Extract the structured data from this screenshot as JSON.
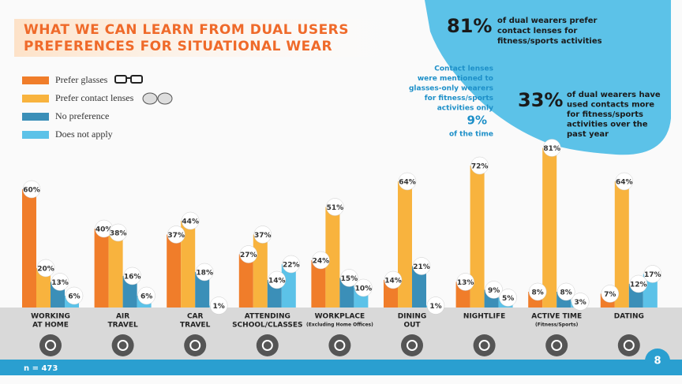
{
  "chart_data": {
    "type": "bar",
    "title": [
      "WHAT WE CAN LEARN FROM DUAL USERS",
      "PREFERENCES FOR SITUATIONAL WEAR"
    ],
    "categories": [
      [
        "WORKING",
        "AT HOME"
      ],
      [
        "AIR",
        "TRAVEL"
      ],
      [
        "CAR",
        "TRAVEL"
      ],
      [
        "ATTENDING",
        "SCHOOL/CLASSES"
      ],
      [
        "WORKPLACE"
      ],
      [
        "DINING",
        "OUT"
      ],
      [
        "NIGHTLIFE"
      ],
      [
        "ACTIVE TIME"
      ],
      [
        "DATING"
      ]
    ],
    "category_notes": [
      null,
      null,
      null,
      null,
      "(Excluding Home Offices)",
      null,
      null,
      "(Fitness/Sports)",
      null
    ],
    "series": [
      {
        "name": "Prefer glasses",
        "color": "#f07d2a",
        "values": [
          60,
          40,
          37,
          27,
          24,
          14,
          13,
          8,
          7
        ],
        "value_labels": [
          "60%",
          "40%",
          "37%",
          "27%",
          "24%",
          "14%",
          "13%",
          "8%",
          "7%"
        ]
      },
      {
        "name": "Prefer contact lenses",
        "color": "#f8b33e",
        "values": [
          20,
          38,
          44,
          37,
          51,
          64,
          72,
          81,
          64
        ],
        "value_labels": [
          "20%",
          "38%",
          "44%",
          "37%",
          "51%",
          "64%",
          "72%",
          "81%",
          "64%"
        ]
      },
      {
        "name": "No preference",
        "color": "#3b8fb8",
        "values": [
          13,
          16,
          18,
          14,
          15,
          21,
          9,
          8,
          12
        ],
        "value_labels": [
          "13%",
          "16%",
          "18%",
          "14%",
          "15%",
          "21%",
          "9%",
          "8%",
          "12%"
        ]
      },
      {
        "name": "Does not apply",
        "color": "#5cc2e8",
        "values": [
          6,
          6,
          1,
          22,
          10,
          1,
          5,
          3,
          17
        ],
        "value_labels": [
          "6%",
          "6%",
          "1%",
          "22%",
          "10%",
          "1%",
          "5%",
          "3%",
          "17%"
        ]
      }
    ],
    "footnote": "n = 473",
    "page_number": "8",
    "callouts": [
      {
        "figure": "81%",
        "lines": [
          "of dual wearers prefer",
          "contact lenses for",
          "fitness/sports activities"
        ]
      },
      {
        "figure": "33%",
        "lines": [
          "of dual wearers have",
          "used contacts more",
          "for fitness/sports",
          "activities over the",
          "past year"
        ]
      },
      {
        "lines": [
          "Contact lenses",
          "were mentioned to",
          "glasses-only wearers",
          "for fitness/sports",
          "activities only"
        ],
        "figure": "9%",
        "after": "of the time"
      }
    ]
  }
}
